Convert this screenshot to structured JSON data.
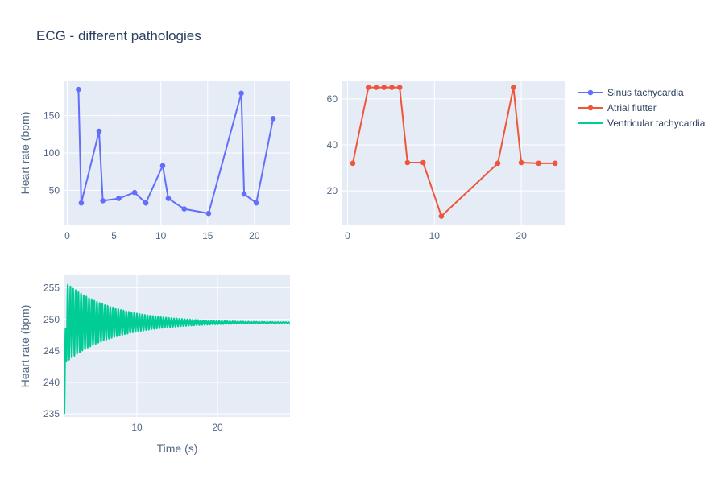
{
  "title": "ECG - different pathologies",
  "legend": {
    "placement": "top-right",
    "entries": [
      {
        "name": "Sinus tachycardia",
        "color": "#636efa",
        "mode": "lines+markers"
      },
      {
        "name": "Atrial flutter",
        "color": "#ef553b",
        "mode": "lines+markers"
      },
      {
        "name": "Ventricular tachycardia",
        "color": "#00cc96",
        "mode": "lines"
      }
    ]
  },
  "chart_data": [
    {
      "type": "line",
      "series_name": "Sinus tachycardia",
      "color": "#636efa",
      "mode": "lines+markers",
      "ylabel": "Heart rate (bpm)",
      "xlabel": "",
      "xlim": [
        -0.3,
        23.8
      ],
      "ylim": [
        3,
        197
      ],
      "xticks": [
        0,
        5,
        10,
        15,
        20
      ],
      "yticks": [
        50,
        100,
        150
      ],
      "grid": true,
      "x": [
        1.2,
        1.5,
        3.4,
        3.8,
        5.5,
        7.2,
        8.4,
        10.2,
        10.8,
        12.5,
        15.1,
        18.6,
        18.9,
        20.2,
        22.0
      ],
      "y": [
        185,
        33,
        129,
        36,
        39,
        47,
        33,
        83,
        39,
        25,
        19,
        180,
        45,
        33,
        146
      ]
    },
    {
      "type": "line",
      "series_name": "Atrial flutter",
      "color": "#ef553b",
      "mode": "lines+markers",
      "ylabel": "",
      "xlabel": "",
      "xlim": [
        -0.6,
        25
      ],
      "ylim": [
        5,
        68
      ],
      "xticks": [
        0,
        10,
        20
      ],
      "yticks": [
        20,
        40,
        60
      ],
      "grid": true,
      "x": [
        0.6,
        2.4,
        3.3,
        4.2,
        5.1,
        6.0,
        6.9,
        8.7,
        10.8,
        17.3,
        19.1,
        20.0,
        22.0,
        23.9
      ],
      "y": [
        32,
        65,
        65,
        65,
        65,
        65,
        32.3,
        32.3,
        9,
        32,
        65,
        32.3,
        32,
        32
      ]
    },
    {
      "type": "line",
      "series_name": "Ventricular tachycardia",
      "color": "#00cc96",
      "mode": "lines",
      "ylabel": "Heart rate (bpm)",
      "xlabel": "Time (s)",
      "xlim": [
        1,
        29
      ],
      "ylim": [
        234.5,
        257
      ],
      "xticks": [
        10,
        20
      ],
      "yticks": [
        235,
        240,
        245,
        250,
        255
      ],
      "grid": true,
      "signal": {
        "baseline": 249.5,
        "start_value": 235,
        "initial_amplitude": 6.5,
        "decay_tau_s": 6,
        "period_s": 0.33,
        "t_start": 1,
        "t_end": 29
      }
    }
  ]
}
